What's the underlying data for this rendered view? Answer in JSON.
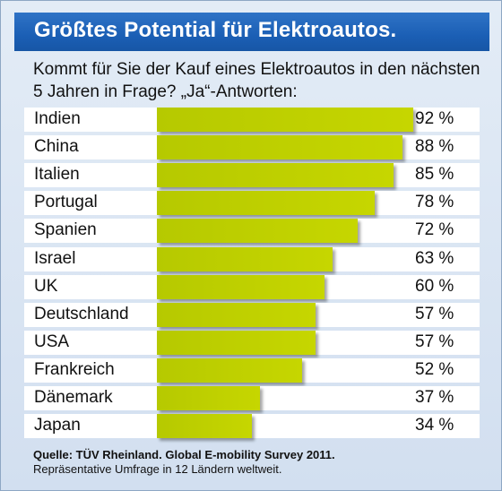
{
  "title": "Größtes Potential für Elektroautos.",
  "question": "Kommt für Sie der Kauf eines Elektroautos in den nächsten 5 Jahren in Frage? „Ja“-Antworten:",
  "source": "Quelle: TÜV Rheinland. Global E-mobility Survey 2011.",
  "note": "Repräsentative Umfrage in 12 Ländern weltweit.",
  "colors": {
    "title_bar": "#1f63b8",
    "bar": "#bccd00",
    "background": "#dbe6f2"
  },
  "chart_data": {
    "type": "bar",
    "orientation": "horizontal",
    "unit": "%",
    "categories": [
      "Indien",
      "China",
      "Italien",
      "Portugal",
      "Spanien",
      "Israel",
      "UK",
      "Deutschland",
      "USA",
      "Frankreich",
      "Dänemark",
      "Japan"
    ],
    "values": [
      92,
      88,
      85,
      78,
      72,
      63,
      60,
      57,
      57,
      52,
      37,
      34
    ],
    "labels": [
      "92 %",
      "88 %",
      "85 %",
      "78 %",
      "72 %",
      "63 %",
      "60 %",
      "57 %",
      "57 %",
      "52 %",
      "37 %",
      "34 %"
    ],
    "xlim": [
      0,
      100
    ]
  }
}
